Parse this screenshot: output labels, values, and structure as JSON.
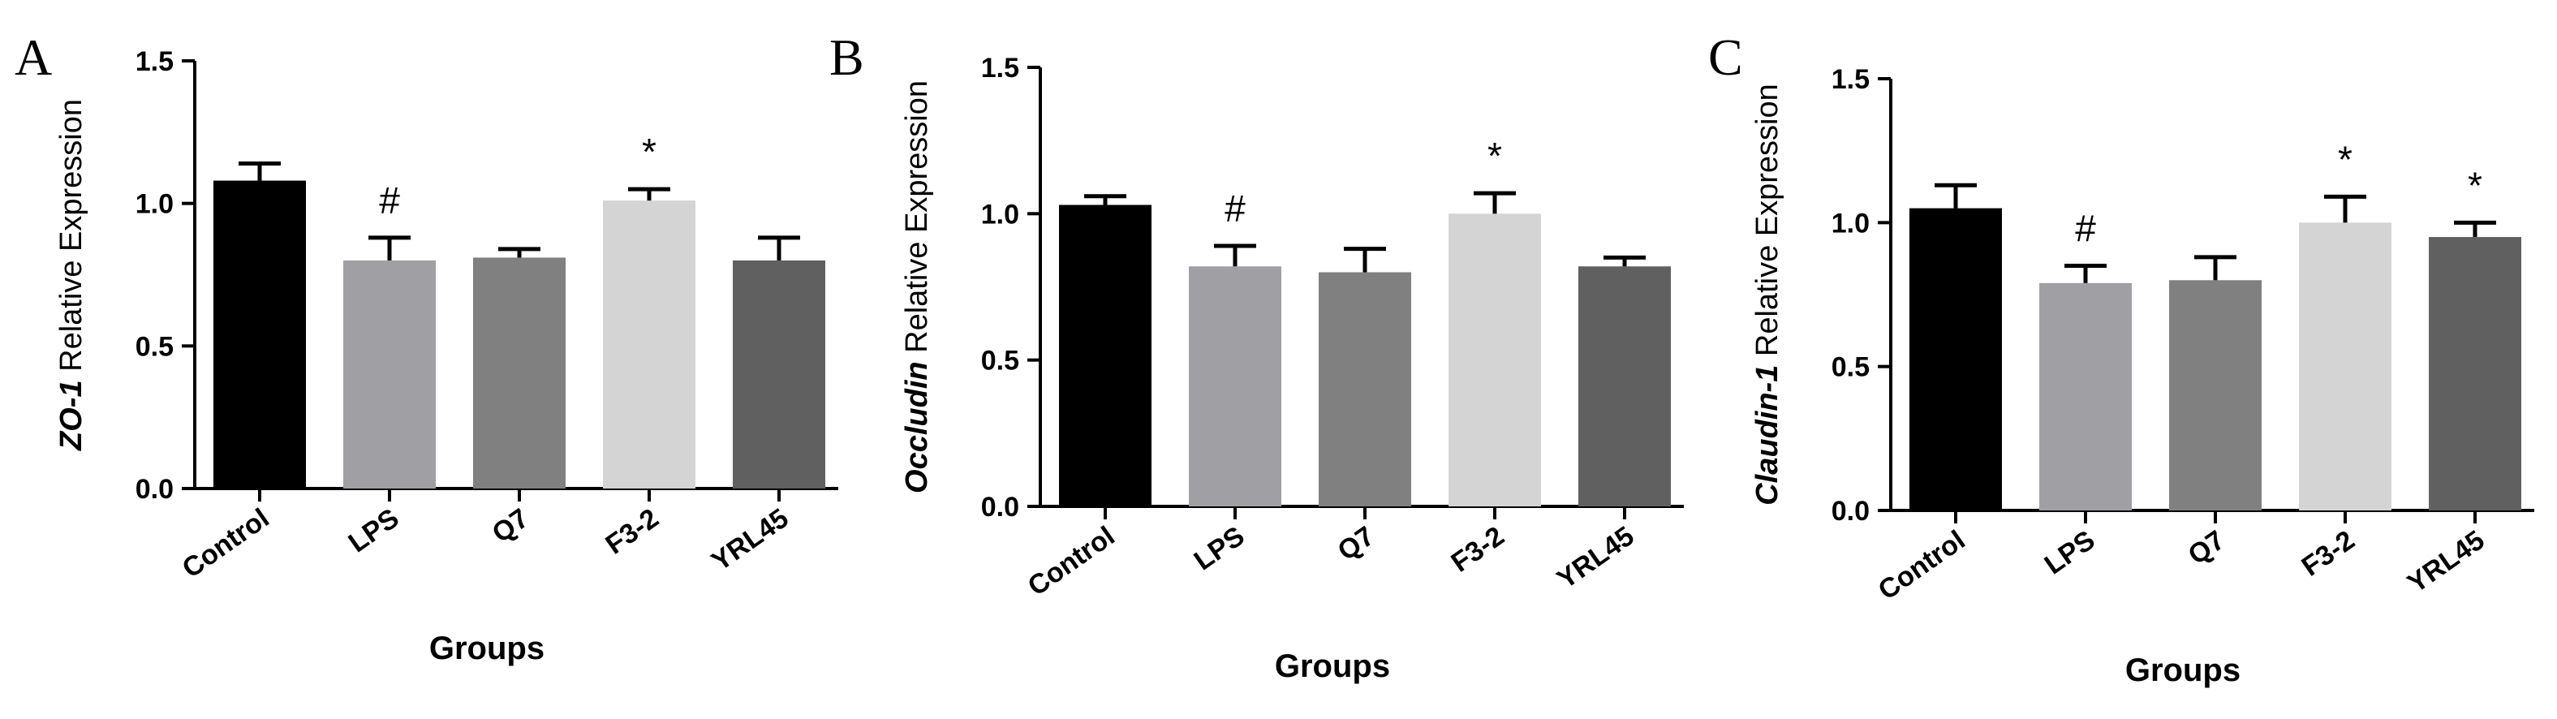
{
  "chart_data": [
    {
      "type": "bar",
      "panel_label": "A",
      "gene": "ZO-1",
      "ylabel_suffix": " Relative Expression",
      "xlabel": "Groups",
      "categories": [
        "Control",
        "LPS",
        "Q7",
        "F3-2",
        "YRL45"
      ],
      "values": [
        1.08,
        0.8,
        0.81,
        1.01,
        0.8
      ],
      "errors": [
        0.06,
        0.08,
        0.03,
        0.04,
        0.08
      ],
      "annotations": [
        "",
        "#",
        "",
        "*",
        ""
      ],
      "colors": [
        "#000000",
        "#a0a0a4",
        "#808080",
        "#d4d4d4",
        "#606060"
      ],
      "ylim": [
        0,
        1.5
      ],
      "yticks": [
        "0.0",
        "0.5",
        "1.0",
        "1.5"
      ]
    },
    {
      "type": "bar",
      "panel_label": "B",
      "gene": "Occludin",
      "ylabel_suffix": " Relative Expression",
      "xlabel": "Groups",
      "categories": [
        "Control",
        "LPS",
        "Q7",
        "F3-2",
        "YRL45"
      ],
      "values": [
        1.03,
        0.82,
        0.8,
        1.0,
        0.82
      ],
      "errors": [
        0.03,
        0.07,
        0.08,
        0.07,
        0.03
      ],
      "annotations": [
        "",
        "#",
        "",
        "*",
        ""
      ],
      "colors": [
        "#000000",
        "#a0a0a4",
        "#808080",
        "#d4d4d4",
        "#606060"
      ],
      "ylim": [
        0,
        1.5
      ],
      "yticks": [
        "0.0",
        "0.5",
        "1.0",
        "1.5"
      ]
    },
    {
      "type": "bar",
      "panel_label": "C",
      "gene": "Claudin-1",
      "ylabel_suffix": " Relative Expression",
      "xlabel": "Groups",
      "categories": [
        "Control",
        "LPS",
        "Q7",
        "F3-2",
        "YRL45"
      ],
      "values": [
        1.05,
        0.79,
        0.8,
        1.0,
        0.95
      ],
      "errors": [
        0.08,
        0.06,
        0.08,
        0.09,
        0.05
      ],
      "annotations": [
        "",
        "#",
        "",
        "*",
        "*"
      ],
      "colors": [
        "#000000",
        "#a0a0a4",
        "#808080",
        "#d4d4d4",
        "#606060"
      ],
      "ylim": [
        0,
        1.5
      ],
      "yticks": [
        "0.0",
        "0.5",
        "1.0",
        "1.5"
      ]
    }
  ]
}
